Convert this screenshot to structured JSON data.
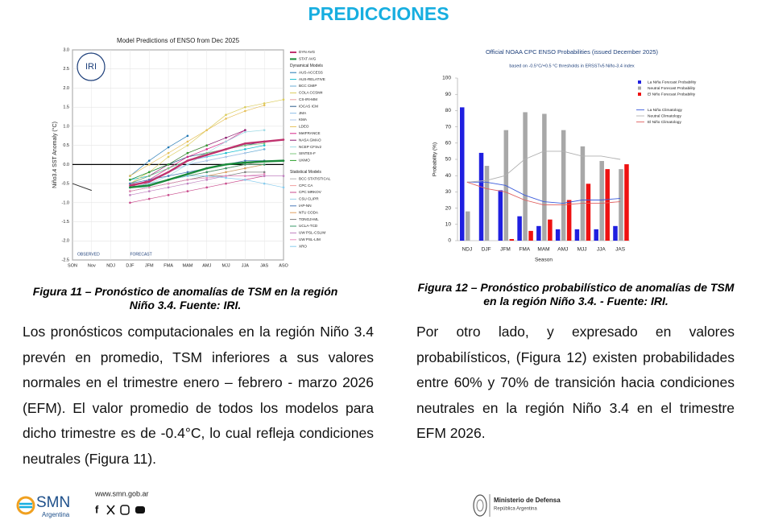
{
  "header": {
    "title": "PREDICCIONES"
  },
  "chart_data": [
    {
      "type": "line",
      "title": "Model Predictions of ENSO from Dec 2025",
      "y_label": "Niño3.4 SST Anomaly (°C)",
      "logo": "IRI",
      "annotations": [
        "OBSERVED",
        "FORECAST"
      ],
      "legend_titles": [
        "Dynamical Models",
        "Statistical Models"
      ],
      "categories": [
        "SON",
        "Nov",
        "NDJ",
        "DJF",
        "JFM",
        "FMA",
        "MAM",
        "AMJ",
        "MJJ",
        "JJA",
        "JAS",
        "ASO"
      ],
      "ylim": [
        -2.5,
        3.0
      ],
      "yticks": [
        {
          "value": -2.5,
          "label": "-2.5"
        },
        {
          "value": -2,
          "label": "-2.0"
        },
        {
          "value": -1.5,
          "label": "-1.5"
        },
        {
          "value": -1,
          "label": "-1.0"
        },
        {
          "value": -0.5,
          "label": "-0.5"
        },
        {
          "value": 0,
          "label": "0.0"
        },
        0.5,
        {
          "value": 1,
          "label": "1.0"
        },
        1.5,
        {
          "value": 2,
          "label": "2.0"
        },
        2.5,
        {
          "value": 3,
          "label": "3.0"
        }
      ],
      "grid": true,
      "zero_line": true,
      "observed": {
        "color": "#333333",
        "values": [
          -0.5,
          -0.68,
          null,
          null,
          null,
          null,
          null,
          null,
          null,
          null,
          null,
          null
        ]
      },
      "series": [
        {
          "name": "DYN AVG",
          "group": "average",
          "color": "#c0326e",
          "values": [
            null,
            null,
            null,
            -0.55,
            -0.45,
            -0.2,
            0.1,
            0.25,
            0.4,
            0.55,
            0.6,
            0.65
          ]
        },
        {
          "name": "STAT AVG",
          "group": "average",
          "color": "#1a8a3a",
          "values": [
            null,
            null,
            null,
            -0.6,
            -0.55,
            -0.4,
            -0.25,
            -0.1,
            0.0,
            0.05,
            0.08,
            0.1
          ]
        },
        {
          "name": "AUS-ACCESS",
          "group": "dynamical",
          "color": "#1f77b4",
          "values": [
            null,
            null,
            null,
            -0.3,
            0.1,
            0.45,
            0.75,
            null,
            null,
            null,
            null,
            null
          ]
        },
        {
          "name": "AUS-RELATIVE",
          "group": "dynamical",
          "color": "#17becf",
          "values": [
            null,
            null,
            null,
            -0.4,
            -0.3,
            -0.1,
            0.1,
            0.2,
            0.3,
            0.4,
            0.5,
            null
          ]
        },
        {
          "name": "BCC CMIP",
          "group": "dynamical",
          "color": "#6baed6",
          "values": [
            null,
            null,
            null,
            -0.5,
            -0.4,
            -0.2,
            0.0,
            0.1,
            0.2,
            0.3,
            0.4,
            null
          ]
        },
        {
          "name": "COLA CCSM4",
          "group": "dynamical",
          "color": "#dbcc5a",
          "values": [
            null,
            null,
            null,
            -0.5,
            -0.2,
            0.2,
            0.5,
            0.9,
            1.3,
            1.5,
            1.6,
            1.7
          ]
        },
        {
          "name": "CS-IRI-MM",
          "group": "dynamical",
          "color": "#e8a0a0",
          "values": [
            null,
            null,
            null,
            -0.6,
            -0.5,
            -0.4,
            -0.3,
            -0.2,
            -0.1,
            0.0,
            0.1,
            null
          ]
        },
        {
          "name": "IOCAS ICM",
          "group": "dynamical",
          "color": "#2b5a8c",
          "values": [
            null,
            null,
            null,
            -0.4,
            -0.2,
            0.0,
            0.2,
            0.3,
            0.4,
            0.5,
            0.6,
            null
          ]
        },
        {
          "name": "JMA",
          "group": "dynamical",
          "color": "#8fbfe8",
          "values": [
            null,
            null,
            null,
            -0.5,
            -0.3,
            -0.1,
            0.1,
            0.2,
            null,
            null,
            null,
            null
          ]
        },
        {
          "name": "KMA",
          "group": "dynamical",
          "color": "#aec7e8",
          "values": [
            null,
            null,
            null,
            -0.5,
            -0.4,
            -0.2,
            0.0,
            0.1,
            0.2,
            0.3,
            null,
            null
          ]
        },
        {
          "name": "LDEO",
          "group": "dynamical",
          "color": "#e6c05a",
          "values": [
            null,
            null,
            null,
            -0.3,
            0.0,
            0.3,
            0.6,
            0.9,
            1.2,
            1.4,
            1.55,
            null
          ]
        },
        {
          "name": "MetFRANCE",
          "group": "dynamical",
          "color": "#d62788",
          "values": [
            null,
            null,
            null,
            -0.6,
            -0.4,
            -0.1,
            0.2,
            0.4,
            0.6,
            0.9,
            null,
            null
          ]
        },
        {
          "name": "NASA GMAO",
          "group": "dynamical",
          "color": "#8b1a6e",
          "values": [
            null,
            null,
            null,
            -0.5,
            -0.3,
            0.0,
            0.3,
            0.5,
            0.7,
            0.9,
            null,
            null
          ]
        },
        {
          "name": "NCEP CFSv2",
          "group": "dynamical",
          "color": "#9edae5",
          "values": [
            null,
            null,
            null,
            -0.6,
            -0.5,
            -0.3,
            0.0,
            0.3,
            0.6,
            0.85,
            0.9,
            null
          ]
        },
        {
          "name": "SINTEX-F",
          "group": "dynamical",
          "color": "#7fc97f",
          "values": [
            null,
            null,
            null,
            -0.5,
            -0.3,
            -0.1,
            0.1,
            0.3,
            0.4,
            0.5,
            0.55,
            null
          ]
        },
        {
          "name": "UKMO",
          "group": "dynamical",
          "color": "#2ca02c",
          "values": [
            null,
            null,
            null,
            -0.4,
            -0.2,
            0.0,
            0.3,
            0.5,
            null,
            null,
            null,
            null
          ]
        },
        {
          "name": "BCC STATISTICAL",
          "group": "statistical",
          "color": "#b0b0b0",
          "values": [
            null,
            null,
            null,
            -0.5,
            -0.5,
            -0.4,
            -0.3,
            -0.2,
            -0.1,
            0.0,
            0.1,
            0.1
          ]
        },
        {
          "name": "CPC CA",
          "group": "statistical",
          "color": "#f2a0a0",
          "values": [
            null,
            null,
            null,
            -0.6,
            -0.5,
            -0.4,
            -0.3,
            -0.2,
            -0.1,
            0.0,
            0.0,
            null
          ]
        },
        {
          "name": "CPC MRKOV",
          "group": "statistical",
          "color": "#c94a8c",
          "values": [
            null,
            null,
            null,
            -1.0,
            -0.9,
            -0.8,
            -0.7,
            -0.6,
            -0.5,
            -0.4,
            -0.3,
            null
          ]
        },
        {
          "name": "CSU CLIPR",
          "group": "statistical",
          "color": "#9bcfe8",
          "values": [
            null,
            null,
            null,
            -0.6,
            -0.6,
            -0.5,
            -0.4,
            -0.3,
            -0.2,
            -0.1,
            0.0,
            null
          ]
        },
        {
          "name": "IAP-NN",
          "group": "statistical",
          "color": "#4a7ab8",
          "values": [
            null,
            null,
            null,
            -0.5,
            -0.4,
            -0.3,
            -0.2,
            -0.1,
            0.0,
            0.1,
            0.1,
            null
          ]
        },
        {
          "name": "NTU CODA",
          "group": "statistical",
          "color": "#e0a060",
          "values": [
            null,
            null,
            null,
            -0.7,
            -0.6,
            -0.5,
            -0.4,
            -0.3,
            -0.2,
            -0.1,
            0.0,
            null
          ]
        },
        {
          "name": "TONGJI-ML",
          "group": "statistical",
          "color": "#7f7f7f",
          "values": [
            null,
            null,
            null,
            -0.7,
            -0.6,
            -0.5,
            -0.4,
            -0.3,
            -0.3,
            -0.2,
            -0.2,
            null
          ]
        },
        {
          "name": "UCLA-TCD",
          "group": "statistical",
          "color": "#3a9a6a",
          "values": [
            null,
            null,
            null,
            -0.6,
            -0.5,
            -0.4,
            -0.3,
            -0.2,
            -0.1,
            0.0,
            0.0,
            null
          ]
        },
        {
          "name": "UW PSL-CSLIM",
          "group": "statistical",
          "color": "#c080c0",
          "values": [
            null,
            null,
            null,
            -0.8,
            -0.7,
            -0.6,
            -0.5,
            -0.4,
            -0.3,
            -0.3,
            -0.3,
            -0.3
          ]
        },
        {
          "name": "UW PSL-LIM",
          "group": "statistical",
          "color": "#e890c0",
          "values": [
            null,
            null,
            null,
            -0.7,
            -0.6,
            -0.5,
            -0.4,
            -0.35,
            -0.3,
            -0.3,
            -0.25,
            null
          ]
        },
        {
          "name": "XRO",
          "group": "statistical",
          "color": "#88ccee",
          "values": [
            null,
            null,
            null,
            -0.6,
            -0.5,
            -0.4,
            -0.3,
            -0.3,
            -0.35,
            -0.4,
            -0.5,
            -0.6
          ]
        }
      ]
    },
    {
      "type": "bar",
      "title": "Official NOAA CPC ENSO Probabilities (issued December 2025)",
      "subtitle": "based on -0.5°C/+0.5 °C thresholds in ERSSTv5 Niño-3.4 index",
      "y_label": "Probability (%)",
      "x_label": "Season",
      "categories": [
        "NDJ",
        "DJF",
        "JFM",
        "FMA",
        "MAM",
        "AMJ",
        "MJJ",
        "JJA",
        "JAS"
      ],
      "ylim": [
        0,
        100
      ],
      "yticks": [
        0,
        10,
        20,
        30,
        40,
        50,
        60,
        70,
        80,
        90,
        100
      ],
      "series": [
        {
          "name": "La Niña Forecast Probability",
          "kind": "bar",
          "color": "#1f1fe0",
          "values": [
            82,
            54,
            31,
            15,
            9,
            7,
            7,
            7,
            9
          ]
        },
        {
          "name": "Neutral Forecast Probability",
          "kind": "bar",
          "color": "#a8a8a8",
          "values": [
            18,
            46,
            68,
            79,
            78,
            68,
            58,
            49,
            44
          ]
        },
        {
          "name": "El Niño Forecast Probability",
          "kind": "bar",
          "color": "#ee1111",
          "values": [
            0,
            0,
            1,
            6,
            13,
            25,
            35,
            44,
            47
          ]
        },
        {
          "name": "La Niña Climatology",
          "kind": "line",
          "color": "#3b5bdb",
          "values": [
            36,
            36,
            34,
            28,
            24,
            23,
            25,
            25,
            26
          ]
        },
        {
          "name": "Neutral Climatology",
          "kind": "line",
          "color": "#b0b0b0",
          "values": [
            36,
            37,
            40,
            50,
            55,
            55,
            52,
            52,
            50
          ]
        },
        {
          "name": "El Niño Climatology",
          "kind": "line",
          "color": "#e06060",
          "values": [
            36,
            32,
            30,
            25,
            22,
            22,
            23,
            23,
            24
          ]
        }
      ]
    }
  ],
  "captions": [
    [
      "Figura 11 – Pronóstico de anomalías de TSM en la región",
      "Niño 3.4. Fuente: IRI."
    ],
    [
      "Figura 12 – Pronóstico probabilístico de anomalías de TSM",
      "en la región Niño 3.4. - Fuente: IRI."
    ]
  ],
  "paragraphs": [
    "Los pronósticos computacionales en la región Niño 3.4 prevén en promedio, TSM inferiores a sus valores normales en el trimestre enero – febrero - marzo 2026 (EFM). El valor promedio de todos los modelos para dicho trimestre es de -0.4°C, lo cual refleja condiciones neutrales (Figura 11).",
    "Por otro lado, y expresado en valores probabilísticos, (Figura 12) existen probabilidades entre 60% y 70% de transición hacia condiciones neutrales en la región Niño 3.4 en el trimestre EFM 2026."
  ],
  "footer": {
    "logo": "SMN",
    "logo_sub": "Argentina",
    "url": "www.smn.gob.ar",
    "ministry": "Ministerio de Defensa",
    "ministry_sub": "República Argentina"
  }
}
